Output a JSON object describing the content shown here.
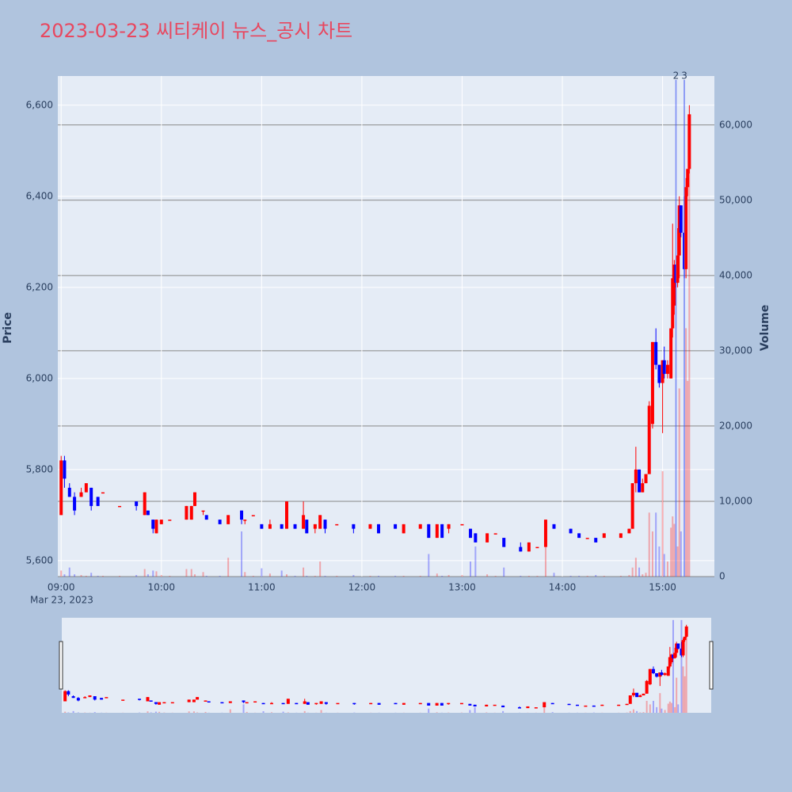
{
  "chart_data": {
    "type": "candlestick",
    "title": "2023-03-23 씨티케이 뉴스_공시 차트",
    "y_label": "Price",
    "y2_label": "Volume",
    "x_date_label": "Mar 23, 2023",
    "increasing_color": "#ff0000",
    "decreasing_color": "#0000ff",
    "x": [
      "09:00",
      "09:02",
      "09:05",
      "09:08",
      "09:12",
      "09:15",
      "09:18",
      "09:22",
      "09:25",
      "09:35",
      "09:45",
      "09:50",
      "09:52",
      "09:55",
      "09:57",
      "10:00",
      "10:05",
      "10:15",
      "10:18",
      "10:20",
      "10:25",
      "10:27",
      "10:35",
      "10:40",
      "10:48",
      "10:50",
      "10:55",
      "11:00",
      "11:05",
      "11:12",
      "11:15",
      "11:20",
      "11:25",
      "11:27",
      "11:32",
      "11:35",
      "11:38",
      "11:45",
      "11:55",
      "12:05",
      "12:10",
      "12:20",
      "12:25",
      "12:35",
      "12:40",
      "12:45",
      "12:48",
      "12:52",
      "13:00",
      "13:05",
      "13:08",
      "13:15",
      "13:20",
      "13:25",
      "13:35",
      "13:40",
      "13:45",
      "13:50",
      "13:55",
      "14:05",
      "14:10",
      "14:15",
      "14:20",
      "14:25",
      "14:35",
      "14:40",
      "14:42",
      "14:44",
      "14:46",
      "14:48",
      "14:50",
      "14:52",
      "14:54",
      "14:56",
      "14:58",
      "15:00",
      "15:01",
      "15:03",
      "15:05",
      "15:06",
      "15:07",
      "15:08",
      "15:09",
      "15:10",
      "15:11",
      "15:13",
      "15:14",
      "15:15",
      "15:16"
    ],
    "open": [
      5700,
      5820,
      5760,
      5740,
      5740,
      5750,
      5760,
      5740,
      5750,
      5720,
      5730,
      5700,
      5710,
      5690,
      5660,
      5680,
      5690,
      5690,
      5690,
      5720,
      5710,
      5700,
      5690,
      5680,
      5710,
      5690,
      5700,
      5680,
      5670,
      5680,
      5670,
      5680,
      5670,
      5690,
      5670,
      5670,
      5690,
      5680,
      5680,
      5670,
      5680,
      5680,
      5660,
      5670,
      5680,
      5650,
      5680,
      5670,
      5680,
      5670,
      5660,
      5640,
      5660,
      5650,
      5630,
      5620,
      5630,
      5630,
      5680,
      5670,
      5660,
      5650,
      5650,
      5650,
      5650,
      5660,
      5670,
      5770,
      5800,
      5750,
      5770,
      5790,
      5900,
      6080,
      6030,
      5990,
      6040,
      6010,
      6000,
      6110,
      6160,
      6250,
      6210,
      6270,
      6380,
      6320,
      6240,
      6420,
      6460
    ],
    "high": [
      5830,
      5830,
      5770,
      5750,
      5760,
      5770,
      5760,
      5740,
      5750,
      5720,
      5730,
      5750,
      5710,
      5690,
      5690,
      5690,
      5690,
      5720,
      5720,
      5750,
      5710,
      5700,
      5690,
      5700,
      5710,
      5690,
      5700,
      5680,
      5690,
      5680,
      5730,
      5680,
      5730,
      5690,
      5680,
      5700,
      5690,
      5680,
      5680,
      5680,
      5680,
      5680,
      5680,
      5680,
      5680,
      5680,
      5680,
      5680,
      5680,
      5670,
      5660,
      5660,
      5660,
      5650,
      5640,
      5640,
      5630,
      5690,
      5680,
      5670,
      5660,
      5650,
      5650,
      5660,
      5660,
      5670,
      5770,
      5850,
      5800,
      5780,
      5790,
      5950,
      6080,
      6110,
      6030,
      6040,
      6070,
      6040,
      6110,
      6340,
      6260,
      6250,
      6330,
      6400,
      6380,
      6400,
      6440,
      6460,
      6600
    ],
    "low": [
      5700,
      5760,
      5740,
      5700,
      5740,
      5750,
      5710,
      5720,
      5750,
      5720,
      5710,
      5700,
      5700,
      5660,
      5660,
      5680,
      5690,
      5690,
      5690,
      5720,
      5700,
      5690,
      5680,
      5680,
      5680,
      5680,
      5700,
      5670,
      5670,
      5670,
      5670,
      5670,
      5670,
      5660,
      5660,
      5670,
      5660,
      5680,
      5660,
      5670,
      5660,
      5670,
      5660,
      5670,
      5650,
      5650,
      5650,
      5660,
      5680,
      5650,
      5640,
      5640,
      5660,
      5630,
      5620,
      5620,
      5630,
      5630,
      5670,
      5660,
      5650,
      5650,
      5640,
      5650,
      5650,
      5660,
      5670,
      5750,
      5750,
      5750,
      5770,
      5790,
      5890,
      6020,
      5980,
      5880,
      6000,
      6000,
      6000,
      6090,
      6140,
      6200,
      6200,
      6220,
      6310,
      6220,
      6220,
      6400,
      6450
    ],
    "close": [
      5820,
      5780,
      5740,
      5710,
      5750,
      5770,
      5720,
      5720,
      5750,
      5720,
      5720,
      5750,
      5700,
      5670,
      5690,
      5690,
      5690,
      5720,
      5720,
      5750,
      5710,
      5690,
      5680,
      5700,
      5690,
      5690,
      5700,
      5670,
      5680,
      5670,
      5730,
      5670,
      5700,
      5660,
      5680,
      5700,
      5670,
      5680,
      5670,
      5680,
      5660,
      5670,
      5680,
      5680,
      5650,
      5680,
      5650,
      5680,
      5680,
      5650,
      5640,
      5660,
      5660,
      5630,
      5620,
      5640,
      5630,
      5690,
      5670,
      5660,
      5650,
      5650,
      5640,
      5660,
      5660,
      5670,
      5770,
      5800,
      5750,
      5770,
      5790,
      5940,
      6080,
      6030,
      5990,
      6040,
      6010,
      6030,
      6110,
      6220,
      6250,
      6210,
      6270,
      6380,
      6320,
      6240,
      6420,
      6460,
      6580
    ],
    "volume": [
      800,
      300,
      1200,
      300,
      200,
      100,
      500,
      100,
      100,
      100,
      200,
      1000,
      300,
      800,
      700,
      200,
      100,
      1000,
      1000,
      300,
      600,
      100,
      100,
      2500,
      6000,
      600,
      100,
      1100,
      400,
      800,
      300,
      100,
      1200,
      100,
      100,
      2000,
      100,
      100,
      200,
      100,
      100,
      100,
      100,
      100,
      3000,
      400,
      100,
      200,
      200,
      2000,
      4000,
      300,
      100,
      1200,
      100,
      100,
      100,
      4000,
      500,
      100,
      100,
      100,
      200,
      100,
      100,
      200,
      1200,
      2500,
      1200,
      300,
      500,
      8500,
      6000,
      8500,
      4000,
      14000,
      3000,
      2000,
      6500,
      8000,
      7000,
      66000,
      4000,
      25000,
      6000,
      66000,
      33000,
      26000,
      60000
    ],
    "xlim": [
      "08:58",
      "15:31"
    ],
    "xticks": [
      "09:00",
      "10:00",
      "11:00",
      "12:00",
      "13:00",
      "14:00",
      "15:00"
    ],
    "ylim": [
      5565,
      6664
    ],
    "yticks": [
      {
        "value": 5600,
        "label": "5,600"
      },
      {
        "value": 5800,
        "label": "5,800"
      },
      {
        "value": 6000,
        "label": "6,000"
      },
      {
        "value": 6200,
        "label": "6,200"
      },
      {
        "value": 6400,
        "label": "6,400"
      },
      {
        "value": 6600,
        "label": "6,600"
      }
    ],
    "y2lim": [
      0,
      66500
    ],
    "y2ticks": [
      0,
      {
        "value": 10000,
        "label": "10,000"
      },
      {
        "value": 20000,
        "label": "20,000"
      },
      {
        "value": 30000,
        "label": "30,000"
      },
      {
        "value": 40000,
        "label": "40,000"
      },
      {
        "value": 50000,
        "label": "50,000"
      },
      {
        "value": 60000,
        "label": "60,000"
      }
    ],
    "annotations": [
      {
        "x": "15:08",
        "text": "2"
      },
      {
        "x": "15:13",
        "text": "3"
      }
    ],
    "grid": true
  }
}
